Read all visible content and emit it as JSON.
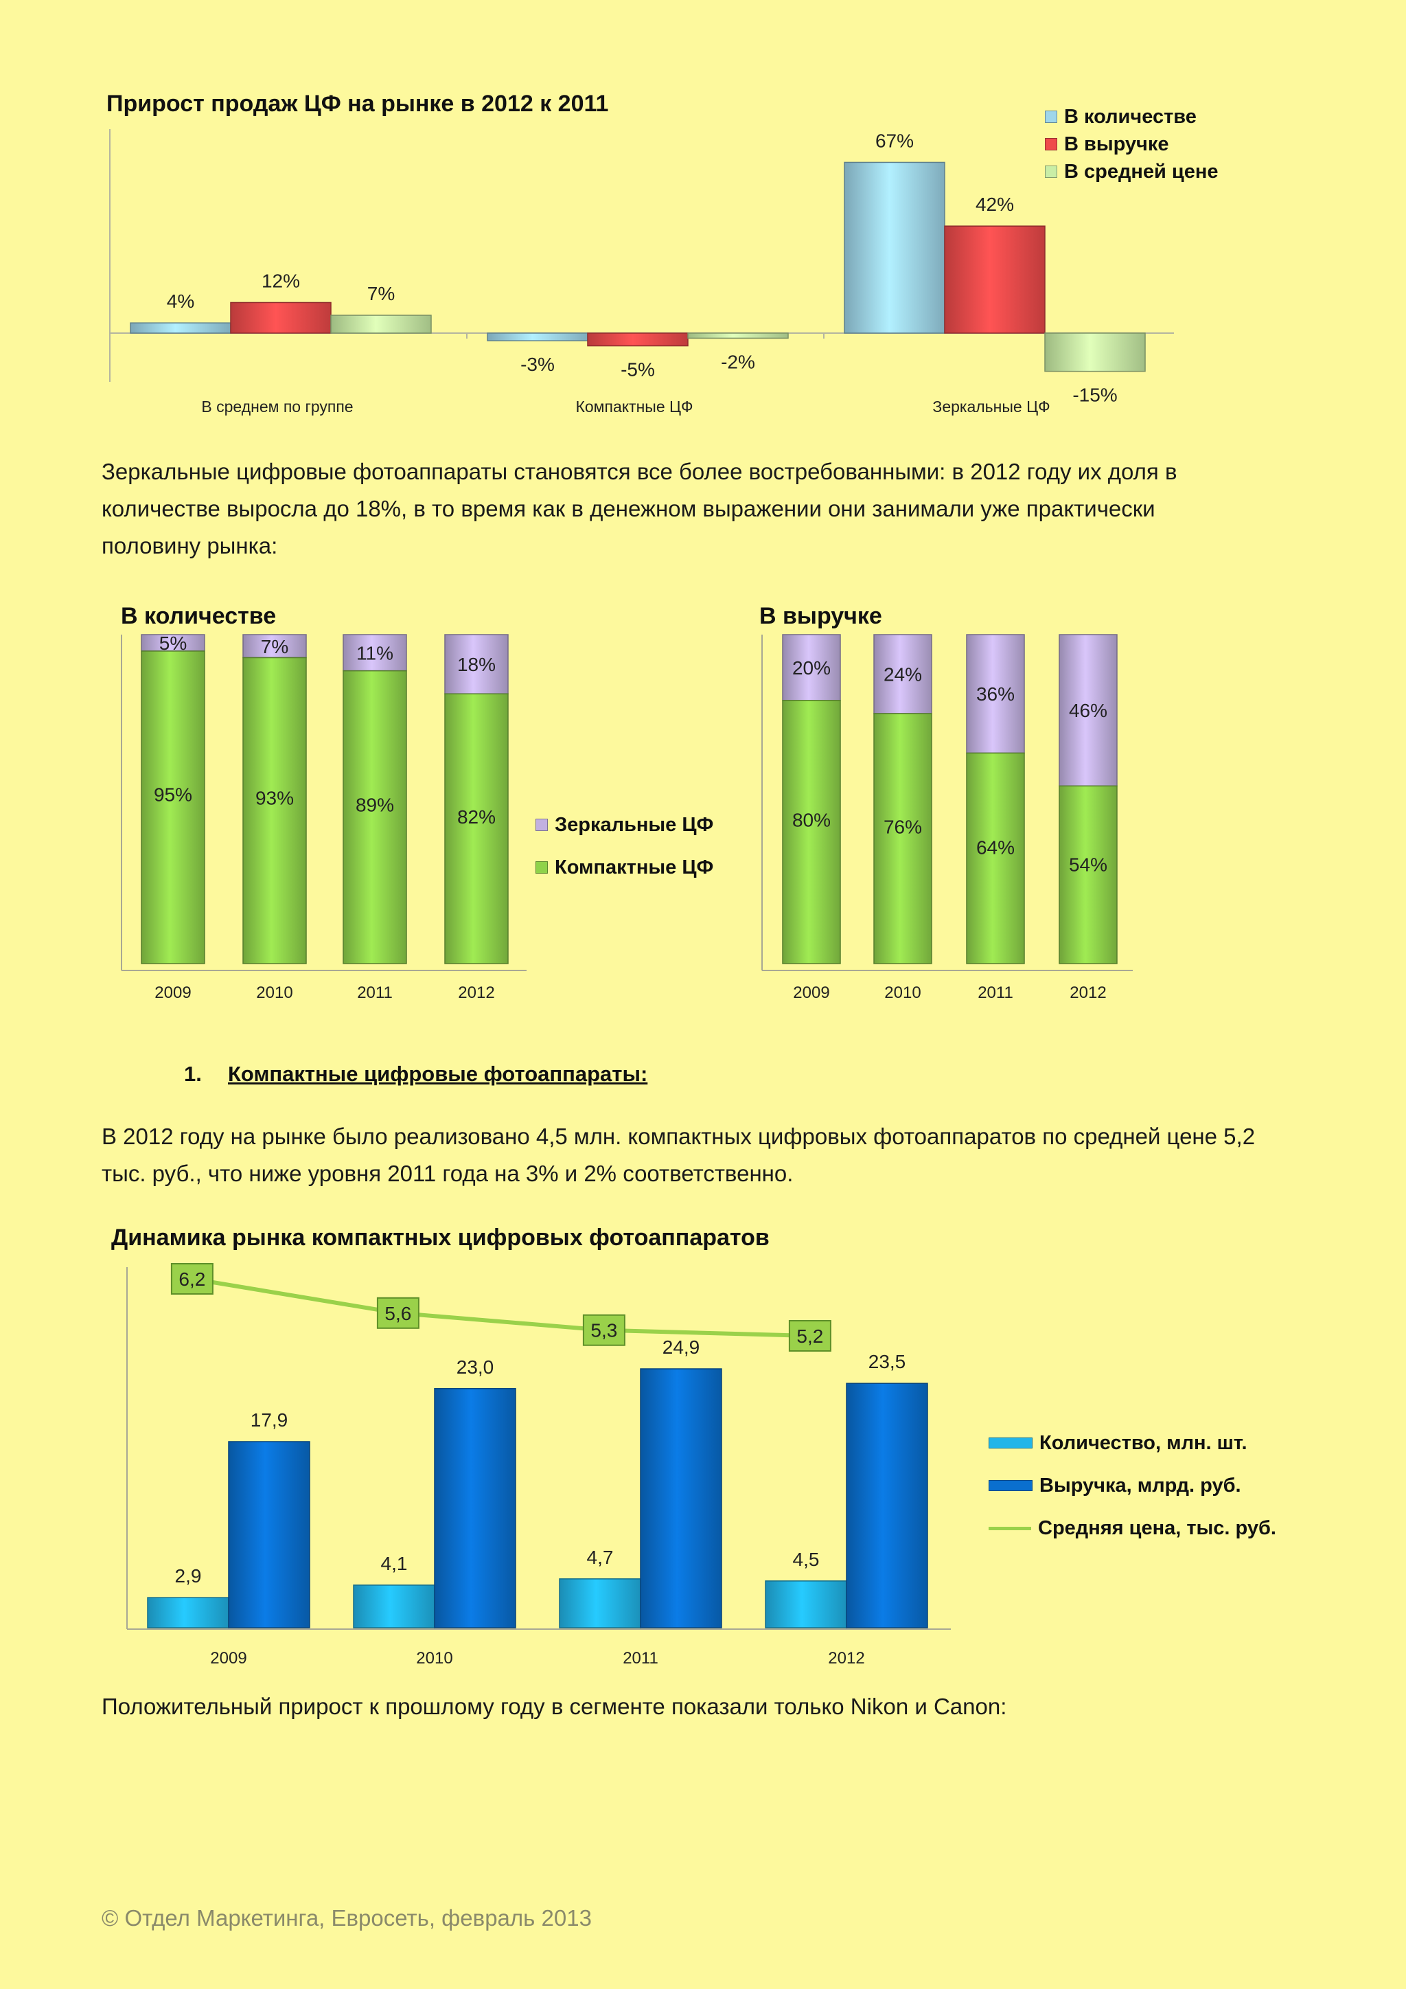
{
  "colors": {
    "page_bg": "#fdf99d",
    "qty": "#9fd6ea",
    "rev": "#ef4b4b",
    "avg": "#c9eea6",
    "mirror": "#c2b1e0",
    "compact": "#8fd24a",
    "qty_blue": "#22b5e8",
    "rev_blue": "#0a6fce",
    "price_line": "#9ad14a"
  },
  "chart_data": [
    {
      "id": "growth",
      "type": "bar",
      "title": "Прирост продаж ЦФ на рынке в 2012 к 2011",
      "categories": [
        "В среднем по группе",
        "Компактные ЦФ",
        "Зеркальные ЦФ"
      ],
      "series": [
        {
          "name": "В количестве",
          "values": [
            4,
            -3,
            67
          ],
          "labels": [
            "4%",
            "-3%",
            "67%"
          ]
        },
        {
          "name": "В выручке",
          "values": [
            12,
            -5,
            42
          ],
          "labels": [
            "12%",
            "-5%",
            "42%"
          ]
        },
        {
          "name": "В средней цене",
          "values": [
            7,
            -2,
            -15
          ],
          "labels": [
            "7%",
            "-2%",
            "-15%"
          ]
        }
      ],
      "ylim": [
        -15,
        67
      ],
      "legend": "top-right"
    },
    {
      "id": "share_qty",
      "type": "bar",
      "stacked": true,
      "title": "В количестве",
      "categories": [
        "2009",
        "2010",
        "2011",
        "2012"
      ],
      "series": [
        {
          "name": "Компактные ЦФ",
          "values": [
            95,
            93,
            89,
            82
          ],
          "labels": [
            "95%",
            "93%",
            "89%",
            "82%"
          ]
        },
        {
          "name": "Зеркальные ЦФ",
          "values": [
            5,
            7,
            11,
            18
          ],
          "labels": [
            "5%",
            "7%",
            "11%",
            "18%"
          ]
        }
      ],
      "ylim": [
        0,
        100
      ],
      "legend": "right"
    },
    {
      "id": "share_rev",
      "type": "bar",
      "stacked": true,
      "title": "В выручке",
      "categories": [
        "2009",
        "2010",
        "2011",
        "2012"
      ],
      "series": [
        {
          "name": "Компактные ЦФ",
          "values": [
            80,
            76,
            64,
            54
          ],
          "labels": [
            "80%",
            "76%",
            "64%",
            "54%"
          ]
        },
        {
          "name": "Зеркальные ЦФ",
          "values": [
            20,
            24,
            36,
            46
          ],
          "labels": [
            "20%",
            "24%",
            "36%",
            "46%"
          ]
        }
      ],
      "ylim": [
        0,
        100
      ]
    },
    {
      "id": "compact_dynamics",
      "type": "bar",
      "title": "Динамика рынка  компактных цифровых фотоаппаратов",
      "categories": [
        "2009",
        "2010",
        "2011",
        "2012"
      ],
      "series": [
        {
          "name": "Количество, млн. шт.",
          "values": [
            2.9,
            4.1,
            4.7,
            4.5
          ],
          "labels": [
            "2,9",
            "4,1",
            "4,7",
            "4,5"
          ]
        },
        {
          "name": "Выручка, млрд. руб.",
          "values": [
            17.9,
            23.0,
            24.9,
            23.5
          ],
          "labels": [
            "17,9",
            "23,0",
            "24,9",
            "23,5"
          ]
        },
        {
          "name": "Средняя цена, тыс. руб.",
          "type": "line",
          "values": [
            6.2,
            5.6,
            5.3,
            5.2
          ],
          "labels": [
            "6,2",
            "5,6",
            "5,3",
            "5,2"
          ]
        }
      ],
      "ylim": [
        0,
        25
      ],
      "legend": "right"
    }
  ],
  "paragraphs": {
    "p1_line1": "Зеркальные цифровые фотоаппараты становятся все более востребованными: в 2012 году их доля в",
    "p1_line2": "количестве выросла до 18%, в то время как в денежном выражении они занимали уже практически",
    "p1_line3": "половину рынка:",
    "p2_line1": "В 2012 году на рынке было реализовано 4,5 млн. компактных цифровых фотоаппаратов по средней цене 5,2",
    "p2_line2": "тыс. руб., что ниже уровня 2011 года на 3% и 2% соответственно.",
    "p3": "Положительный прирост к прошлому году в сегменте показали только Nikon и Canon:"
  },
  "section": {
    "number": "1.",
    "title": "Компактные цифровые фотоаппараты:"
  },
  "footer": "© Отдел Маркетинга, Евросеть, февраль 2013"
}
